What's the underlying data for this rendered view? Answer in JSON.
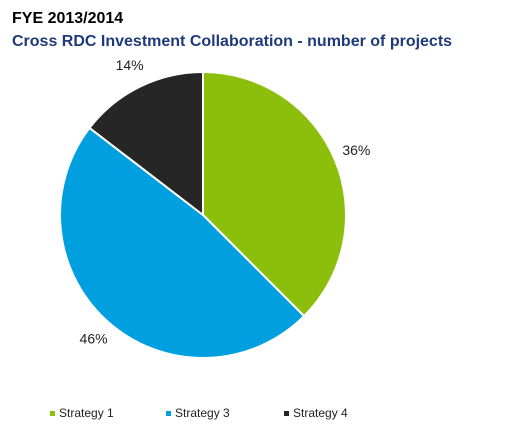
{
  "chart_data": {
    "type": "pie",
    "title": "FYE 2013/2014",
    "subtitle": "Cross RDC Investment Collaboration - number of projects",
    "categories": [
      "Strategy 1",
      "Strategy 3",
      "Strategy 4"
    ],
    "values": [
      36,
      46,
      14
    ],
    "value_labels": [
      "36%",
      "46%",
      "14%"
    ],
    "colors": [
      "#8bbf0c",
      "#00a0e0",
      "#262626"
    ],
    "legend": "bottom"
  }
}
